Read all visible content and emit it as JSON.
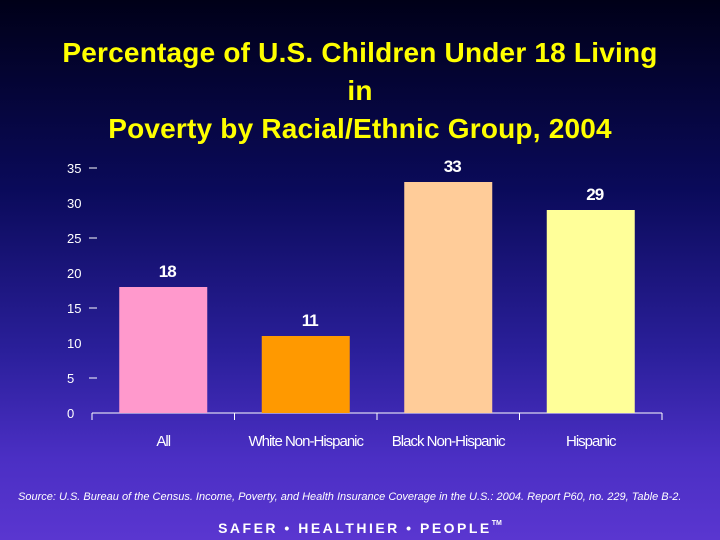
{
  "title_lines": [
    "Percentage of U.S. Children Under 18 Living",
    "in",
    "Poverty by Racial/Ethnic Group, 2004"
  ],
  "chart_data": {
    "type": "bar",
    "title": "Percentage of U.S. Children Under 18 Living in Poverty by Racial/Ethnic Group, 2004",
    "categories": [
      "All",
      "White Non-Hispanic",
      "Black Non-Hispanic",
      "Hispanic"
    ],
    "values": [
      18,
      11,
      33,
      29
    ],
    "data_labels": [
      "18",
      "11",
      "33",
      "29"
    ],
    "colors": [
      "#ff99cc",
      "#ff9900",
      "#ffcc99",
      "#ffff99"
    ],
    "ylim": [
      0,
      35
    ],
    "yticks": [
      "0",
      "5",
      "10",
      "15",
      "20",
      "25",
      "30",
      "35"
    ],
    "xlabel": "",
    "ylabel": "",
    "grid": false,
    "legend": "none"
  },
  "source": "Source: U.S. Bureau of the Census. Income, Poverty, and Health Insurance Coverage in the U.S.: 2004. Report P60, no. 229, Table B-2.",
  "footer": {
    "text": "SAFER • HEALTHIER • PEOPLE",
    "tm": "TM"
  }
}
